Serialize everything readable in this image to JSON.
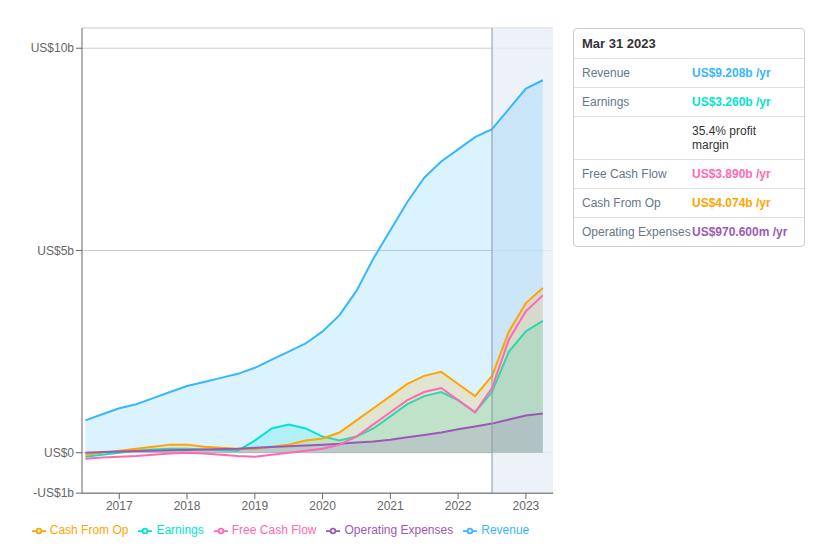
{
  "chart_data": {
    "type": "area",
    "x": [
      2016.5,
      2016.75,
      2017.0,
      2017.25,
      2017.5,
      2017.75,
      2018.0,
      2018.25,
      2018.5,
      2018.75,
      2019.0,
      2019.25,
      2019.5,
      2019.75,
      2020.0,
      2020.25,
      2020.5,
      2020.75,
      2021.0,
      2021.25,
      2021.5,
      2021.75,
      2022.0,
      2022.25,
      2022.5,
      2022.75,
      2023.0,
      2023.25
    ],
    "series": [
      {
        "name": "Revenue",
        "type": "area",
        "color": "#38b6ff",
        "values": [
          0.8,
          0.95,
          1.1,
          1.2,
          1.35,
          1.5,
          1.65,
          1.75,
          1.85,
          1.95,
          2.1,
          2.3,
          2.5,
          2.7,
          3.0,
          3.4,
          4.0,
          4.8,
          5.5,
          6.2,
          6.8,
          7.2,
          7.5,
          7.8,
          8.0,
          8.5,
          9.0,
          9.208
        ]
      },
      {
        "name": "Earnings",
        "type": "area",
        "color": "#00e5cc",
        "values": [
          -0.1,
          -0.05,
          0.0,
          0.05,
          0.08,
          0.1,
          0.1,
          0.08,
          0.06,
          0.05,
          0.3,
          0.6,
          0.7,
          0.6,
          0.4,
          0.3,
          0.4,
          0.6,
          0.9,
          1.2,
          1.4,
          1.5,
          1.3,
          1.0,
          1.5,
          2.5,
          3.0,
          3.26
        ]
      },
      {
        "name": "Free Cash Flow",
        "type": "line",
        "color": "#ff69b4",
        "values": [
          -0.15,
          -0.12,
          -0.1,
          -0.08,
          -0.05,
          -0.02,
          0.0,
          -0.02,
          -0.05,
          -0.08,
          -0.1,
          -0.05,
          0.0,
          0.05,
          0.1,
          0.2,
          0.4,
          0.7,
          1.0,
          1.3,
          1.5,
          1.6,
          1.3,
          1.0,
          1.6,
          2.8,
          3.5,
          3.89
        ]
      },
      {
        "name": "Cash From Op",
        "type": "area",
        "color": "#ffa500",
        "values": [
          -0.05,
          0.0,
          0.05,
          0.1,
          0.15,
          0.2,
          0.2,
          0.15,
          0.12,
          0.1,
          0.1,
          0.15,
          0.2,
          0.3,
          0.35,
          0.5,
          0.8,
          1.1,
          1.4,
          1.7,
          1.9,
          2.0,
          1.7,
          1.4,
          1.9,
          3.0,
          3.7,
          4.074
        ]
      },
      {
        "name": "Operating Expenses",
        "type": "area",
        "color": "#9b59b6",
        "values": [
          0.0,
          0.02,
          0.03,
          0.04,
          0.05,
          0.06,
          0.07,
          0.08,
          0.09,
          0.1,
          0.12,
          0.14,
          0.16,
          0.18,
          0.2,
          0.22,
          0.25,
          0.28,
          0.32,
          0.38,
          0.44,
          0.5,
          0.58,
          0.65,
          0.72,
          0.82,
          0.92,
          0.9706
        ]
      }
    ],
    "xlim": [
      2016.45,
      2023.4
    ],
    "xticks": [
      2017,
      2018,
      2019,
      2020,
      2021,
      2022,
      2023
    ],
    "ylim": [
      -1.0,
      10.5
    ],
    "yticks": [
      {
        "value": -1,
        "label": "-US$1b"
      },
      {
        "value": 0,
        "label": "US$0"
      },
      {
        "value": 5,
        "label": "US$5b"
      },
      {
        "value": 10,
        "label": "US$10b"
      }
    ],
    "grid": true,
    "legend": "bottom",
    "highlight_x": 2022.5,
    "annotations": [
      {
        "text": "Mar 31 2023"
      },
      {
        "label": "Revenue",
        "text": "US$9.208b /yr",
        "color": "#38b6ff"
      },
      {
        "label": "Earnings",
        "text": "US$3.260b /yr",
        "color": "#00e5cc"
      },
      {
        "text": "35.4% profit margin"
      },
      {
        "label": "Free Cash Flow",
        "text": "US$3.890b /yr",
        "color": "#ff69b4"
      },
      {
        "label": "Cash From Op",
        "text": "US$4.074b /yr",
        "color": "#ffa500"
      },
      {
        "label": "Operating Expenses",
        "text": "US$970.600m /yr",
        "color": "#9b59b6"
      }
    ]
  }
}
